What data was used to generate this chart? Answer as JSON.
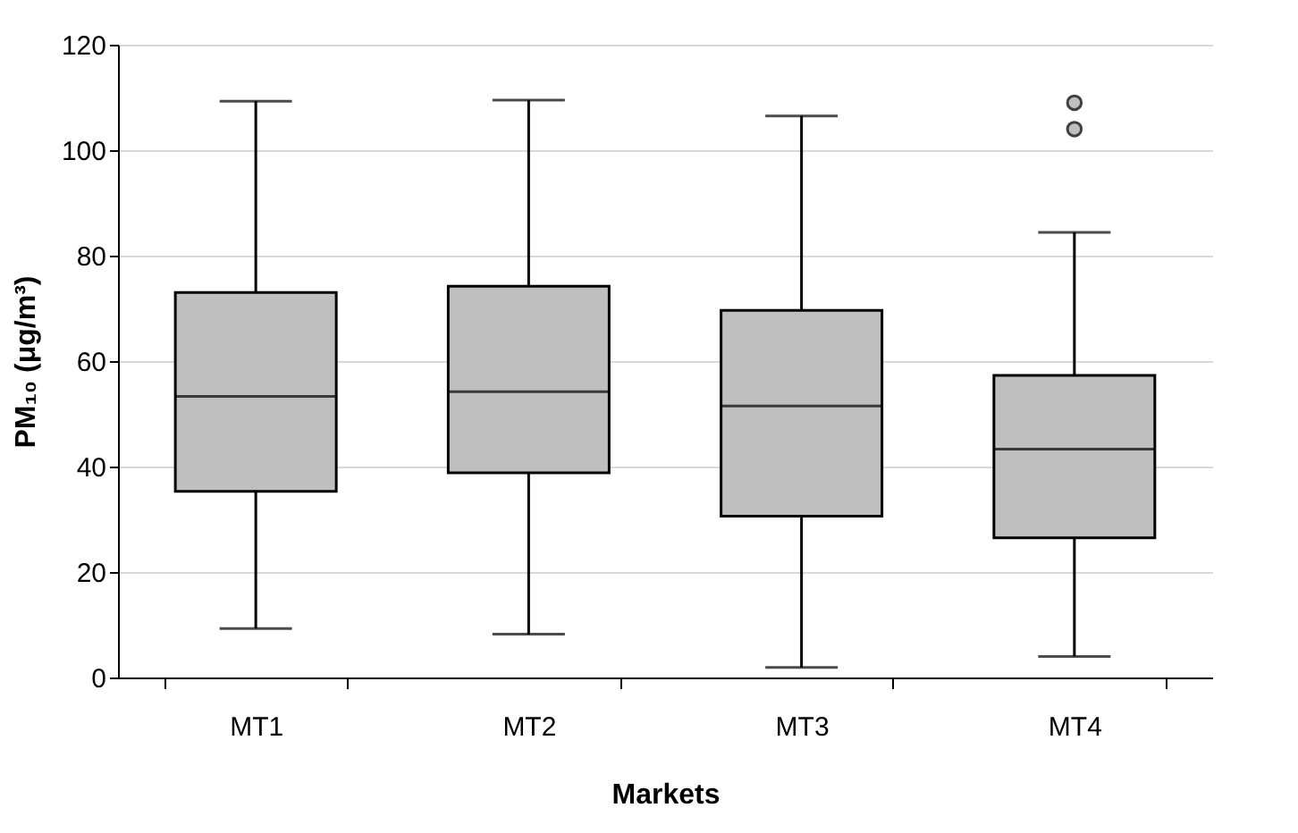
{
  "chart_data": {
    "type": "box",
    "xlabel": "Markets",
    "ylabel": "PM₁₀ (μg/m³)",
    "categories": [
      "MT1",
      "MT2",
      "MT3",
      "MT4"
    ],
    "boxes": [
      {
        "low": 9.3,
        "q1": 35.3,
        "median": 53.3,
        "q3": 73,
        "high": 109.3
      },
      {
        "low": 8.2,
        "q1": 38.8,
        "median": 54.2,
        "q3": 74.2,
        "high": 109.5
      },
      {
        "low": 1.9,
        "q1": 30.6,
        "median": 51.5,
        "q3": 69.6,
        "high": 106.5
      },
      {
        "low": 4.0,
        "q1": 26.5,
        "median": 43.3,
        "q3": 57.3,
        "high": 84.4,
        "outliers": [
          104,
          109
        ]
      }
    ],
    "color": "#bfbfbf",
    "ylim": [
      0,
      120
    ],
    "yticks": [
      0,
      20,
      40,
      60,
      80,
      100,
      120
    ],
    "grid": "y"
  }
}
